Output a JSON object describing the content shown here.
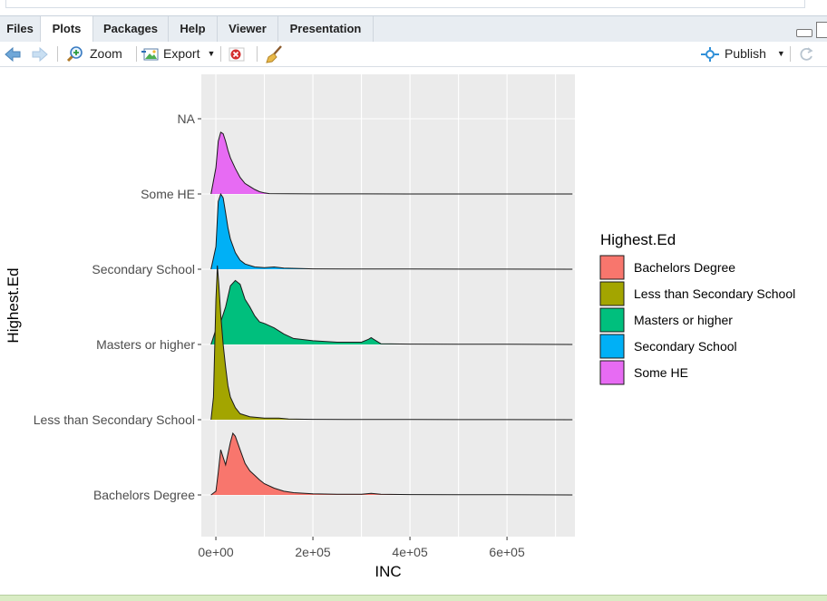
{
  "tabs": [
    {
      "label": "Files",
      "active": false
    },
    {
      "label": "Plots",
      "active": true
    },
    {
      "label": "Packages",
      "active": false
    },
    {
      "label": "Help",
      "active": false
    },
    {
      "label": "Viewer",
      "active": false
    },
    {
      "label": "Presentation",
      "active": false
    }
  ],
  "toolbar": {
    "zoom_label": "Zoom",
    "export_label": "Export",
    "publish_label": "Publish"
  },
  "chart_data": {
    "type": "ridgeline",
    "xlabel": "INC",
    "ylabel": "Highest.Ed",
    "xlim": [
      -30000,
      740000
    ],
    "x_ticks": [
      {
        "value": 0,
        "label": "0e+00"
      },
      {
        "value": 200000,
        "label": "2e+05"
      },
      {
        "value": 400000,
        "label": "4e+05"
      },
      {
        "value": 600000,
        "label": "6e+05"
      }
    ],
    "categories": [
      "Bachelors Degree",
      "Less than Secondary School",
      "Masters or higher",
      "Secondary School",
      "Some HE",
      "NA"
    ],
    "legend_title": "Highest.Ed",
    "legend_position": "right",
    "grid": true,
    "series": [
      {
        "name": "Bachelors Degree",
        "color": "#F8766D",
        "category_index": 0,
        "x": [
          -10000,
          0,
          5000,
          10000,
          20000,
          30000,
          35000,
          40000,
          50000,
          60000,
          70000,
          80000,
          90000,
          100000,
          120000,
          140000,
          160000,
          200000,
          250000,
          300000,
          320000,
          340000,
          400000,
          500000,
          600000,
          735000
        ],
        "y": [
          0,
          0.05,
          0.3,
          0.6,
          0.4,
          0.7,
          0.82,
          0.78,
          0.6,
          0.42,
          0.32,
          0.26,
          0.2,
          0.15,
          0.09,
          0.05,
          0.03,
          0.015,
          0.01,
          0.01,
          0.02,
          0.01,
          0.005,
          0.003,
          0.002,
          0
        ]
      },
      {
        "name": "Less than Secondary School",
        "color": "#A3A500",
        "category_index": 1,
        "x": [
          -10000,
          -5000,
          0,
          3000,
          6000,
          10000,
          15000,
          20000,
          25000,
          30000,
          40000,
          50000,
          70000,
          100000,
          130000,
          150000,
          200000,
          300000,
          400000,
          500000,
          600000,
          735000
        ],
        "y": [
          0,
          0.3,
          1.6,
          2.05,
          1.8,
          1.4,
          1.0,
          0.7,
          0.45,
          0.3,
          0.16,
          0.08,
          0.04,
          0.02,
          0.02,
          0.01,
          0.005,
          0.003,
          0.002,
          0.001,
          0.001,
          0
        ]
      },
      {
        "name": "Masters or higher",
        "color": "#00BF7D",
        "category_index": 2,
        "x": [
          -10000,
          -5000,
          0,
          10000,
          20000,
          30000,
          40000,
          50000,
          60000,
          70000,
          80000,
          90000,
          100000,
          120000,
          140000,
          160000,
          200000,
          250000,
          300000,
          315000,
          320000,
          325000,
          340000,
          400000,
          500000,
          600000,
          735000
        ],
        "y": [
          0,
          0.1,
          0.2,
          0.3,
          0.5,
          0.78,
          0.85,
          0.8,
          0.6,
          0.5,
          0.38,
          0.3,
          0.28,
          0.22,
          0.14,
          0.08,
          0.05,
          0.03,
          0.03,
          0.07,
          0.09,
          0.07,
          0.01,
          0.005,
          0.003,
          0.002,
          0
        ]
      },
      {
        "name": "Secondary School",
        "color": "#00B0F6",
        "category_index": 3,
        "x": [
          -10000,
          0,
          5000,
          10000,
          15000,
          20000,
          25000,
          30000,
          40000,
          50000,
          60000,
          80000,
          100000,
          120000,
          140000,
          200000,
          300000,
          400000,
          500000,
          600000,
          735000
        ],
        "y": [
          0,
          0.3,
          0.9,
          1.0,
          0.95,
          0.75,
          0.55,
          0.4,
          0.22,
          0.12,
          0.07,
          0.03,
          0.02,
          0.03,
          0.015,
          0.005,
          0.003,
          0.002,
          0.001,
          0.001,
          0
        ]
      },
      {
        "name": "Some HE",
        "color": "#E76BF3",
        "category_index": 4,
        "x": [
          -10000,
          0,
          5000,
          10000,
          15000,
          20000,
          25000,
          30000,
          40000,
          50000,
          60000,
          70000,
          80000,
          90000,
          100000,
          110000,
          150000,
          200000,
          300000,
          400000,
          500000,
          600000,
          735000
        ],
        "y": [
          0,
          0.35,
          0.7,
          0.82,
          0.8,
          0.7,
          0.58,
          0.48,
          0.34,
          0.22,
          0.14,
          0.1,
          0.06,
          0.03,
          0.015,
          0.005,
          0.002,
          0.001,
          0.001,
          0,
          0,
          0,
          0
        ]
      }
    ]
  }
}
